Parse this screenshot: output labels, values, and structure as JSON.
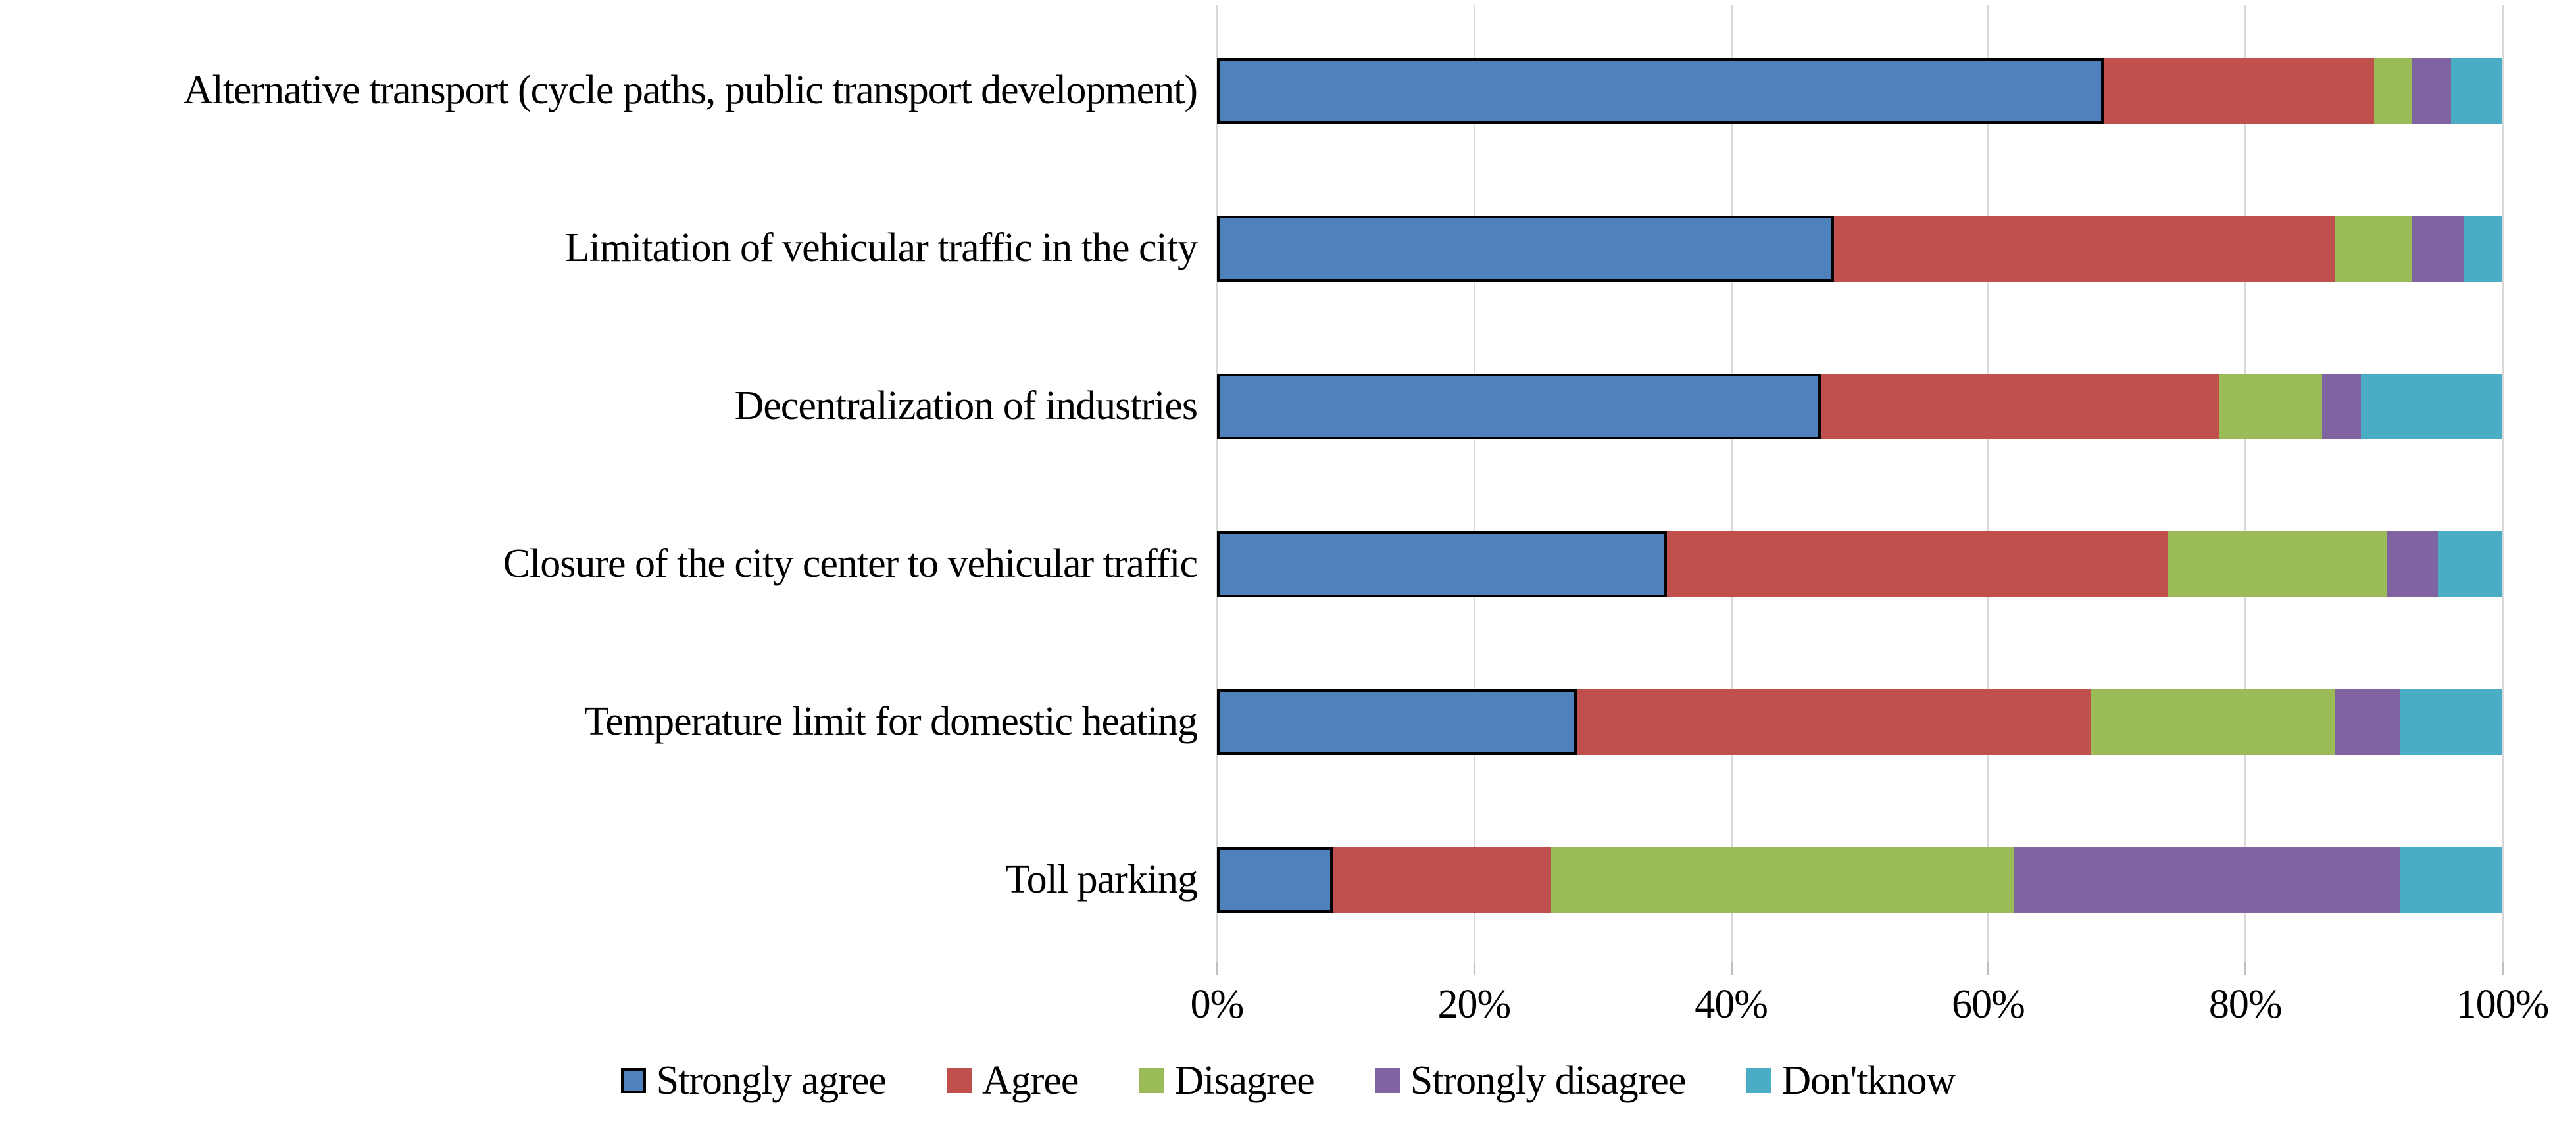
{
  "chart_data": {
    "type": "bar",
    "orientation": "horizontal",
    "stacked": true,
    "title": "",
    "xlabel": "",
    "ylabel": "",
    "grid": "vertical-on",
    "legend_position": "bottom",
    "categories": [
      "Alternative transport (cycle paths, public transport development)",
      "Limitation of vehicular traffic in the city",
      "Decentralization of industries",
      "Closure of the city center to vehicular traffic",
      "Temperature limit for domestic heating",
      "Toll parking"
    ],
    "series": [
      {
        "name": "Strongly agree",
        "color": "#4F81BD",
        "outline": "#000000",
        "values": [
          69,
          48,
          47,
          35,
          28,
          9
        ]
      },
      {
        "name": "Agree",
        "color": "#C0504D",
        "outline": null,
        "values": [
          21,
          39,
          31,
          39,
          40,
          17
        ]
      },
      {
        "name": "Disagree",
        "color": "#9BBB59",
        "outline": null,
        "values": [
          3,
          6,
          8,
          17,
          19,
          36
        ]
      },
      {
        "name": "Strongly disagree",
        "color": "#8064A2",
        "outline": null,
        "values": [
          3,
          4,
          3,
          4,
          5,
          30
        ]
      },
      {
        "name": "Don'tknow",
        "color": "#4BACC6",
        "outline": null,
        "values": [
          4,
          3,
          11,
          5,
          8,
          8
        ]
      }
    ],
    "x_axis": {
      "range": [
        0,
        100
      ],
      "tick_step": 20,
      "tick_labels": [
        "0%",
        "20%",
        "40%",
        "60%",
        "80%",
        "100%"
      ]
    },
    "colors": {
      "gridline": "#d9d9d9",
      "axis_tick": "#bfbfbf",
      "text": "#000000",
      "background": "#ffffff"
    }
  }
}
